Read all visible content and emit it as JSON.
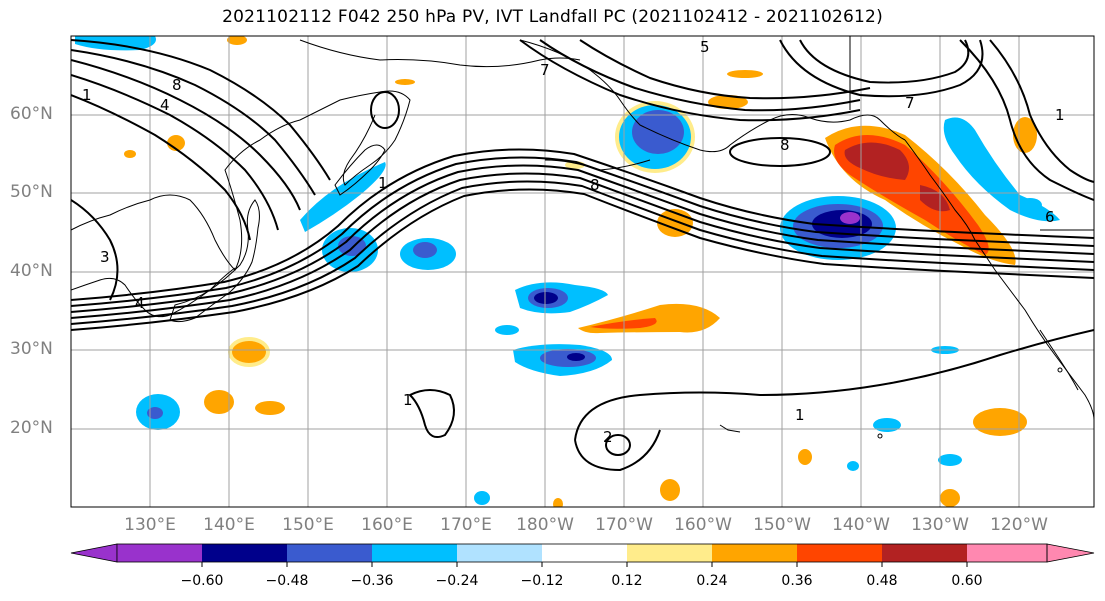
{
  "title": "2021102112 F042 250 hPa PV, IVT Landfall PC (2021102412 - 2021102612)",
  "lat_labels": [
    "60°N",
    "50°N",
    "40°N",
    "30°N",
    "20°N"
  ],
  "lon_labels": [
    "130°E",
    "140°E",
    "150°E",
    "160°E",
    "170°E",
    "180°W",
    "170°W",
    "160°W",
    "150°W",
    "140°W",
    "130°W",
    "120°W"
  ],
  "contour_labels": [
    "1",
    "4",
    "8",
    "3",
    "4",
    "1",
    "7",
    "5",
    "8",
    "8",
    "7",
    "1",
    "1",
    "2",
    "1",
    "6"
  ],
  "colorbar": {
    "ticks": [
      "−0.60",
      "−0.48",
      "−0.36",
      "−0.24",
      "−0.12",
      "0.12",
      "0.24",
      "0.36",
      "0.48",
      "0.60"
    ],
    "colors": [
      "#9932CC",
      "#00008B",
      "#3A5BCF",
      "#00BFFF",
      "#B0E2FF",
      "#FFFFFF",
      "#FFEC8B",
      "#FFA500",
      "#FF4500",
      "#B22222",
      "#FF88B0"
    ]
  }
}
